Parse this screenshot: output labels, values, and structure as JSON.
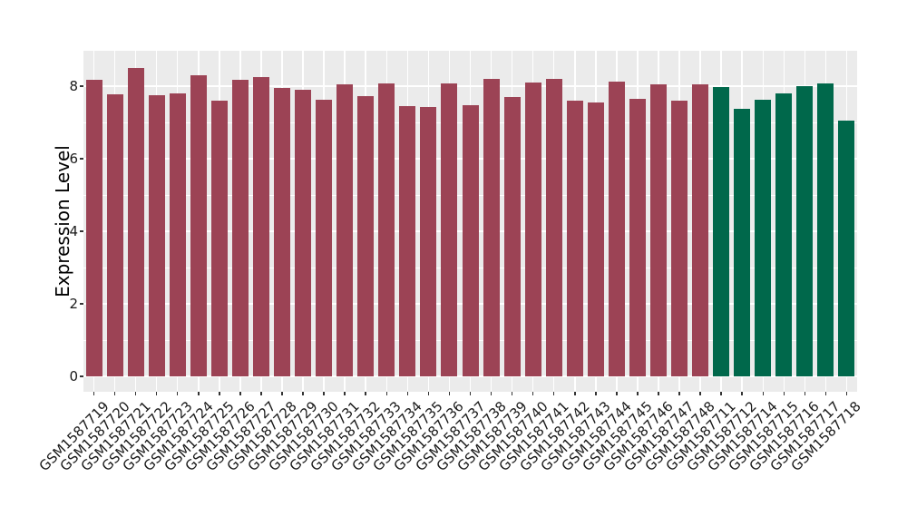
{
  "style": {
    "figure_background": "#FFFFFF",
    "panel_background": "#EBEBEB",
    "grid_color": "#FFFFFF",
    "tick_color": "#333333",
    "axis_text_color": "#1a1a1a"
  },
  "chart_data": {
    "type": "bar",
    "title": "",
    "xlabel": "",
    "ylabel": "Expression Level",
    "ylim": [
      0,
      9
    ],
    "yticks": [
      0,
      2,
      4,
      6,
      8
    ],
    "grid": true,
    "legend": false,
    "colors": {
      "maroon": "#9C4355",
      "green": "#00684B"
    },
    "bars": [
      {
        "label": "GSM1587719",
        "value": 8.17,
        "color": "maroon"
      },
      {
        "label": "GSM1587720",
        "value": 7.77,
        "color": "maroon"
      },
      {
        "label": "GSM1587721",
        "value": 8.5,
        "color": "maroon"
      },
      {
        "label": "GSM1587722",
        "value": 7.75,
        "color": "maroon"
      },
      {
        "label": "GSM1587723",
        "value": 7.79,
        "color": "maroon"
      },
      {
        "label": "GSM1587724",
        "value": 8.3,
        "color": "maroon"
      },
      {
        "label": "GSM1587725",
        "value": 7.61,
        "color": "maroon"
      },
      {
        "label": "GSM1587726",
        "value": 8.17,
        "color": "maroon"
      },
      {
        "label": "GSM1587727",
        "value": 8.25,
        "color": "maroon"
      },
      {
        "label": "GSM1587728",
        "value": 7.95,
        "color": "maroon"
      },
      {
        "label": "GSM1587729",
        "value": 7.9,
        "color": "maroon"
      },
      {
        "label": "GSM1587730",
        "value": 7.63,
        "color": "maroon"
      },
      {
        "label": "GSM1587731",
        "value": 8.05,
        "color": "maroon"
      },
      {
        "label": "GSM1587732",
        "value": 7.73,
        "color": "maroon"
      },
      {
        "label": "GSM1587733",
        "value": 8.07,
        "color": "maroon"
      },
      {
        "label": "GSM1587734",
        "value": 7.44,
        "color": "maroon"
      },
      {
        "label": "GSM1587735",
        "value": 7.43,
        "color": "maroon"
      },
      {
        "label": "GSM1587736",
        "value": 8.07,
        "color": "maroon"
      },
      {
        "label": "GSM1587737",
        "value": 7.48,
        "color": "maroon"
      },
      {
        "label": "GSM1587738",
        "value": 8.21,
        "color": "maroon"
      },
      {
        "label": "GSM1587739",
        "value": 7.7,
        "color": "maroon"
      },
      {
        "label": "GSM1587740",
        "value": 8.1,
        "color": "maroon"
      },
      {
        "label": "GSM1587741",
        "value": 8.21,
        "color": "maroon"
      },
      {
        "label": "GSM1587742",
        "value": 7.6,
        "color": "maroon"
      },
      {
        "label": "GSM1587743",
        "value": 7.55,
        "color": "maroon"
      },
      {
        "label": "GSM1587744",
        "value": 8.13,
        "color": "maroon"
      },
      {
        "label": "GSM1587745",
        "value": 7.64,
        "color": "maroon"
      },
      {
        "label": "GSM1587746",
        "value": 8.04,
        "color": "maroon"
      },
      {
        "label": "GSM1587747",
        "value": 7.61,
        "color": "maroon"
      },
      {
        "label": "GSM1587748",
        "value": 8.04,
        "color": "maroon"
      },
      {
        "label": "GSM1587711",
        "value": 7.98,
        "color": "green"
      },
      {
        "label": "GSM1587712",
        "value": 7.37,
        "color": "green"
      },
      {
        "label": "GSM1587714",
        "value": 7.62,
        "color": "green"
      },
      {
        "label": "GSM1587715",
        "value": 7.79,
        "color": "green"
      },
      {
        "label": "GSM1587716",
        "value": 8.01,
        "color": "green"
      },
      {
        "label": "GSM1587717",
        "value": 8.07,
        "color": "green"
      },
      {
        "label": "GSM1587718",
        "value": 7.05,
        "color": "green"
      }
    ]
  }
}
